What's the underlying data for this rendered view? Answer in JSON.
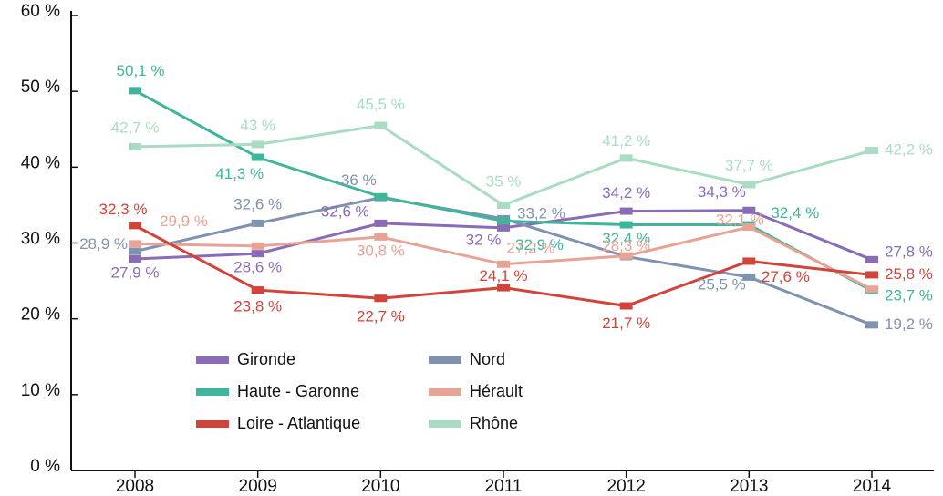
{
  "chart_data": {
    "type": "line",
    "x": [
      2008,
      2009,
      2010,
      2011,
      2012,
      2013,
      2014
    ],
    "xlim": [
      2007.5,
      2014.5
    ],
    "xticks": [
      2008,
      2009,
      2010,
      2011,
      2012,
      2013,
      2014
    ],
    "ylim": [
      0,
      60
    ],
    "yticks": [
      {
        "value": 0,
        "label": "0 %"
      },
      {
        "value": 10,
        "label": "10 %"
      },
      {
        "value": 20,
        "label": "20 %"
      },
      {
        "value": 30,
        "label": "30 %"
      },
      {
        "value": 40,
        "label": "40 %"
      },
      {
        "value": 50,
        "label": "50 %"
      },
      {
        "value": 60,
        "label": "60 %"
      }
    ],
    "legend": "lower left",
    "series": [
      {
        "name": "Gironde",
        "color": "#8a6bb8",
        "values": [
          27.9,
          28.6,
          32.6,
          32,
          34.2,
          34.3,
          27.8
        ],
        "value_labels": [
          "27,9 %",
          "28,6 %",
          "32,6 %",
          "32 %",
          "34,2 %",
          "34,3 %",
          "27,8 %"
        ]
      },
      {
        "name": "Nord",
        "color": "#7f92b0",
        "values": [
          28.9,
          32.6,
          36,
          33.2,
          28.2,
          25.5,
          19.2
        ],
        "value_labels": [
          "28,9 %",
          "32,6 %",
          "36 %",
          "33,2 %",
          null,
          "25,5 %",
          "19,2 %"
        ]
      },
      {
        "name": "Haute - Garonne",
        "color": "#3fb59c",
        "values": [
          50.1,
          41.3,
          36.1,
          32.9,
          32.4,
          32.4,
          23.7
        ],
        "value_labels": [
          "50,1 %",
          "41,3 %",
          null,
          "32,9 %",
          "32,4 %",
          "32,4 %",
          "23,7 %"
        ]
      },
      {
        "name": "Hérault",
        "color": "#e8a394",
        "values": [
          29.9,
          29.6,
          30.8,
          27.2,
          28.3,
          32.1,
          23.9
        ],
        "value_labels": [
          "29,9 %",
          null,
          "30,8 %",
          "27,2 %",
          "28,3 %",
          "32,1 %",
          null
        ]
      },
      {
        "name": "Loire - Atlantique",
        "color": "#d2433a",
        "values": [
          32.3,
          23.8,
          22.7,
          24.1,
          21.7,
          27.6,
          25.8
        ],
        "value_labels": [
          "32,3 %",
          "23,8 %",
          "22,7 %",
          "24,1 %",
          "21,7 %",
          "27,6 %",
          "25,8 %"
        ]
      },
      {
        "name": "Rhône",
        "color": "#a9dcc2",
        "values": [
          42.7,
          43,
          45.5,
          35,
          41.2,
          37.7,
          42.2
        ],
        "value_labels": [
          "42,7 %",
          "43 %",
          "45,5 %",
          "35 %",
          "41,2 %",
          "37,7 %",
          "42,2 %"
        ]
      }
    ]
  }
}
